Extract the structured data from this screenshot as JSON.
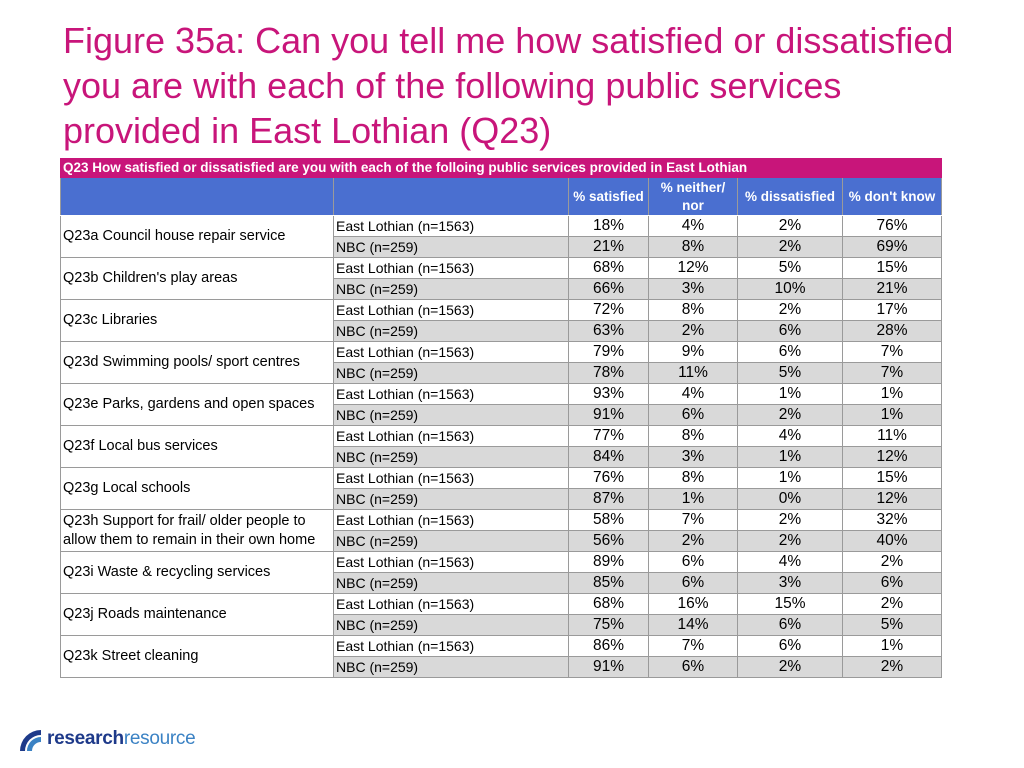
{
  "title": "Figure 35a: Can you tell me how satisfied or dissatisfied you are with each of the following public services provided in East Lothian (Q23)",
  "table": {
    "caption": "Q23 How satisfied or dissatisfied are you with each of the folloing public services provided in East Lothian",
    "columns": [
      "% satisfied",
      "% neither/ nor",
      "% dissatisfied",
      "% don't know"
    ],
    "rows": [
      {
        "question": "Q23a Council house repair service",
        "groups": [
          {
            "label": "East Lothian (n=1563)",
            "values": [
              "18%",
              "4%",
              "2%",
              "76%"
            ]
          },
          {
            "label": "NBC (n=259)",
            "values": [
              "21%",
              "8%",
              "2%",
              "69%"
            ]
          }
        ]
      },
      {
        "question": "Q23b Children's play areas",
        "groups": [
          {
            "label": "East Lothian (n=1563)",
            "values": [
              "68%",
              "12%",
              "5%",
              "15%"
            ]
          },
          {
            "label": "NBC (n=259)",
            "values": [
              "66%",
              "3%",
              "10%",
              "21%"
            ]
          }
        ]
      },
      {
        "question": "Q23c Libraries",
        "groups": [
          {
            "label": "East Lothian (n=1563)",
            "values": [
              "72%",
              "8%",
              "2%",
              "17%"
            ]
          },
          {
            "label": "NBC (n=259)",
            "values": [
              "63%",
              "2%",
              "6%",
              "28%"
            ]
          }
        ]
      },
      {
        "question": "Q23d Swimming pools/ sport centres",
        "groups": [
          {
            "label": "East Lothian (n=1563)",
            "values": [
              "79%",
              "9%",
              "6%",
              "7%"
            ]
          },
          {
            "label": "NBC (n=259)",
            "values": [
              "78%",
              "11%",
              "5%",
              "7%"
            ]
          }
        ]
      },
      {
        "question": "Q23e Parks, gardens and open spaces",
        "groups": [
          {
            "label": "East Lothian (n=1563)",
            "values": [
              "93%",
              "4%",
              "1%",
              "1%"
            ]
          },
          {
            "label": "NBC (n=259)",
            "values": [
              "91%",
              "6%",
              "2%",
              "1%"
            ]
          }
        ]
      },
      {
        "question": "Q23f Local bus services",
        "groups": [
          {
            "label": "East Lothian (n=1563)",
            "values": [
              "77%",
              "8%",
              "4%",
              "11%"
            ]
          },
          {
            "label": "NBC (n=259)",
            "values": [
              "84%",
              "3%",
              "1%",
              "12%"
            ]
          }
        ]
      },
      {
        "question": "Q23g Local schools",
        "groups": [
          {
            "label": "East Lothian (n=1563)",
            "values": [
              "76%",
              "8%",
              "1%",
              "15%"
            ]
          },
          {
            "label": "NBC (n=259)",
            "values": [
              "87%",
              "1%",
              "0%",
              "12%"
            ]
          }
        ]
      },
      {
        "question": "Q23h Support for frail/ older people to allow them to remain in their own home",
        "groups": [
          {
            "label": "East Lothian (n=1563)",
            "values": [
              "58%",
              "7%",
              "2%",
              "32%"
            ]
          },
          {
            "label": "NBC (n=259)",
            "values": [
              "56%",
              "2%",
              "2%",
              "40%"
            ]
          }
        ]
      },
      {
        "question": "Q23i Waste & recycling services",
        "groups": [
          {
            "label": "East Lothian (n=1563)",
            "values": [
              "89%",
              "6%",
              "4%",
              "2%"
            ]
          },
          {
            "label": "NBC (n=259)",
            "values": [
              "85%",
              "6%",
              "3%",
              "6%"
            ]
          }
        ]
      },
      {
        "question": "Q23j Roads maintenance",
        "groups": [
          {
            "label": "East Lothian (n=1563)",
            "values": [
              "68%",
              "16%",
              "15%",
              "2%"
            ]
          },
          {
            "label": "NBC (n=259)",
            "values": [
              "75%",
              "14%",
              "6%",
              "5%"
            ]
          }
        ]
      },
      {
        "question": "Q23k Street cleaning",
        "groups": [
          {
            "label": "East Lothian (n=1563)",
            "values": [
              "86%",
              "7%",
              "6%",
              "1%"
            ]
          },
          {
            "label": "NBC (n=259)",
            "values": [
              "91%",
              "6%",
              "2%",
              "2%"
            ]
          }
        ]
      }
    ]
  },
  "logo": {
    "part1": "research",
    "part2": "resource",
    "icon": "research-resource-logo-icon"
  },
  "colors": {
    "title": "#c8157a",
    "caption_bg": "#c8157a",
    "header_bg": "#4a6fd0",
    "alt_row": "#d9d9d9"
  }
}
